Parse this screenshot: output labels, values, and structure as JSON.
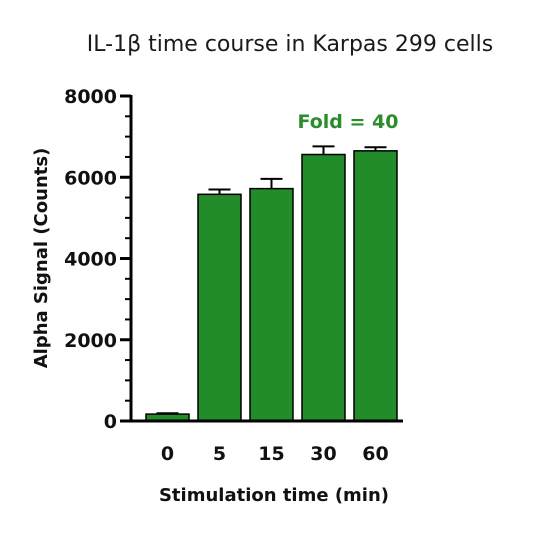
{
  "chart_data": {
    "type": "bar",
    "title": "IL-1β time course in Karpas 299 cells",
    "xlabel": "Stimulation time (min)",
    "ylabel": "Alpha Signal (Counts)",
    "categories": [
      "0",
      "5",
      "15",
      "30",
      "60"
    ],
    "values": [
      170,
      5580,
      5720,
      6560,
      6650
    ],
    "error": [
      20,
      120,
      240,
      200,
      90
    ],
    "ylim": [
      0,
      8000
    ],
    "yticks": [
      0,
      2000,
      4000,
      6000,
      8000
    ],
    "ytick_labels": [
      "0",
      "2000",
      "4000",
      "6000",
      "8000"
    ],
    "annotation": "Fold = 40",
    "bar_color": "#228b2a",
    "annotation_color": "#2a8c2a",
    "grid": false,
    "legend": "none"
  }
}
